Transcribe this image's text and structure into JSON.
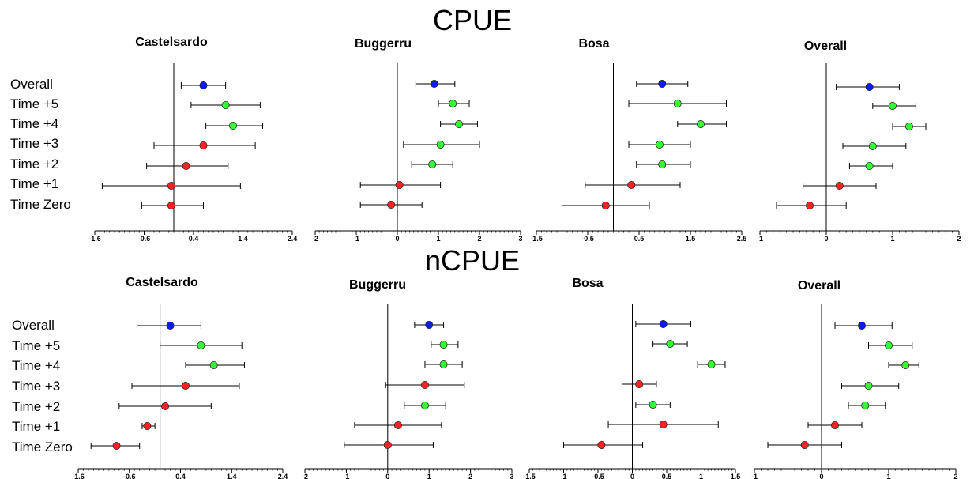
{
  "sections": [
    {
      "title": "CPUE"
    },
    {
      "title": "nCPUE"
    }
  ],
  "row_labels": [
    "Overall",
    "Time +5",
    "Time +4",
    "Time +3",
    "Time +2",
    "Time +1",
    "Time Zero"
  ],
  "colors": {
    "overall": "#0a1aff",
    "green": "#33ff33",
    "red": "#ff2222",
    "axis": "#000000",
    "marker_edge": "#222222"
  },
  "chart_data": [
    {
      "type": "forest",
      "section": "CPUE",
      "title": "Castelsardo",
      "xlim": [
        -1.6,
        2.4
      ],
      "xticks": [
        -1.6,
        -0.6,
        0.4,
        1.4,
        2.4
      ],
      "xtick_labels": [
        "-1.6",
        "-0.6",
        "0.4",
        "1.4",
        "2.4"
      ],
      "ref_line": 0,
      "points": [
        {
          "label": "Overall",
          "est": 0.6,
          "lo": 0.15,
          "hi": 1.05,
          "color": "blue"
        },
        {
          "label": "Time +5",
          "est": 1.05,
          "lo": 0.35,
          "hi": 1.75,
          "color": "green"
        },
        {
          "label": "Time +4",
          "est": 1.2,
          "lo": 0.65,
          "hi": 1.8,
          "color": "green"
        },
        {
          "label": "Time +3",
          "est": 0.6,
          "lo": -0.4,
          "hi": 1.65,
          "color": "red"
        },
        {
          "label": "Time +2",
          "est": 0.25,
          "lo": -0.55,
          "hi": 1.1,
          "color": "red"
        },
        {
          "label": "Time +1",
          "est": -0.05,
          "lo": -1.45,
          "hi": 1.35,
          "color": "red"
        },
        {
          "label": "Time Zero",
          "est": -0.05,
          "lo": -0.65,
          "hi": 0.6,
          "color": "red"
        }
      ]
    },
    {
      "type": "forest",
      "section": "CPUE",
      "title": "Buggerru",
      "xlim": [
        -2,
        3
      ],
      "xticks": [
        -2,
        -1,
        0,
        1,
        2,
        3
      ],
      "xtick_labels": [
        "-2",
        "-1",
        "0",
        "1",
        "2",
        "3"
      ],
      "ref_line": 0,
      "points": [
        {
          "label": "Overall",
          "est": 0.9,
          "lo": 0.45,
          "hi": 1.4,
          "color": "blue"
        },
        {
          "label": "Time +5",
          "est": 1.35,
          "lo": 1.0,
          "hi": 1.75,
          "color": "green"
        },
        {
          "label": "Time +4",
          "est": 1.5,
          "lo": 1.05,
          "hi": 1.95,
          "color": "green"
        },
        {
          "label": "Time +3",
          "est": 1.05,
          "lo": 0.15,
          "hi": 2.0,
          "color": "green"
        },
        {
          "label": "Time +2",
          "est": 0.85,
          "lo": 0.35,
          "hi": 1.35,
          "color": "green"
        },
        {
          "label": "Time +1",
          "est": 0.05,
          "lo": -0.9,
          "hi": 1.05,
          "color": "red"
        },
        {
          "label": "Time Zero",
          "est": -0.15,
          "lo": -0.9,
          "hi": 0.6,
          "color": "red"
        }
      ]
    },
    {
      "type": "forest",
      "section": "CPUE",
      "title": "Bosa",
      "xlim": [
        -1.5,
        2.5
      ],
      "xticks": [
        -1.5,
        -0.5,
        0.5,
        1.5,
        2.5
      ],
      "xtick_labels": [
        "-1.5",
        "-0.5",
        "0.5",
        "1.5",
        "2.5"
      ],
      "ref_line": 0,
      "points": [
        {
          "label": "Overall",
          "est": 0.95,
          "lo": 0.45,
          "hi": 1.45,
          "color": "blue"
        },
        {
          "label": "Time +5",
          "est": 1.25,
          "lo": 0.3,
          "hi": 2.2,
          "color": "green"
        },
        {
          "label": "Time +4",
          "est": 1.7,
          "lo": 1.25,
          "hi": 2.2,
          "color": "green"
        },
        {
          "label": "Time +3",
          "est": 0.9,
          "lo": 0.3,
          "hi": 1.5,
          "color": "green"
        },
        {
          "label": "Time +2",
          "est": 0.95,
          "lo": 0.45,
          "hi": 1.5,
          "color": "green"
        },
        {
          "label": "Time +1",
          "est": 0.35,
          "lo": -0.55,
          "hi": 1.3,
          "color": "red"
        },
        {
          "label": "Time Zero",
          "est": -0.15,
          "lo": -1.0,
          "hi": 0.7,
          "color": "red"
        }
      ]
    },
    {
      "type": "forest",
      "section": "CPUE",
      "title": "Overall",
      "xlim": [
        -1,
        2
      ],
      "xticks": [
        -1,
        0,
        1,
        2
      ],
      "xtick_labels": [
        "-1",
        "0",
        "1",
        "2"
      ],
      "ref_line": 0,
      "points": [
        {
          "label": "Overall",
          "est": 0.65,
          "lo": 0.15,
          "hi": 1.1,
          "color": "blue"
        },
        {
          "label": "Time +5",
          "est": 1.0,
          "lo": 0.7,
          "hi": 1.35,
          "color": "green"
        },
        {
          "label": "Time +4",
          "est": 1.25,
          "lo": 1.0,
          "hi": 1.5,
          "color": "green"
        },
        {
          "label": "Time +3",
          "est": 0.7,
          "lo": 0.25,
          "hi": 1.2,
          "color": "green"
        },
        {
          "label": "Time +2",
          "est": 0.65,
          "lo": 0.35,
          "hi": 1.0,
          "color": "green"
        },
        {
          "label": "Time +1",
          "est": 0.2,
          "lo": -0.35,
          "hi": 0.75,
          "color": "red"
        },
        {
          "label": "Time Zero",
          "est": -0.25,
          "lo": -0.75,
          "hi": 0.3,
          "color": "red"
        }
      ]
    },
    {
      "type": "forest",
      "section": "nCPUE",
      "title": "Castelsardo",
      "xlim": [
        -1.6,
        2.4
      ],
      "xticks": [
        -1.6,
        -0.6,
        0.4,
        1.4,
        2.4
      ],
      "xtick_labels": [
        "-1.6",
        "-0.6",
        "0.4",
        "1.4",
        "2.4"
      ],
      "ref_line": 0,
      "points": [
        {
          "label": "Overall",
          "est": 0.2,
          "lo": -0.45,
          "hi": 0.8,
          "color": "blue"
        },
        {
          "label": "Time +5",
          "est": 0.8,
          "lo": 0.0,
          "hi": 1.6,
          "color": "green"
        },
        {
          "label": "Time +4",
          "est": 1.05,
          "lo": 0.5,
          "hi": 1.65,
          "color": "green"
        },
        {
          "label": "Time +3",
          "est": 0.5,
          "lo": -0.55,
          "hi": 1.55,
          "color": "red"
        },
        {
          "label": "Time +2",
          "est": 0.1,
          "lo": -0.8,
          "hi": 1.0,
          "color": "red"
        },
        {
          "label": "Time +1",
          "est": -0.25,
          "lo": -0.35,
          "hi": -0.1,
          "color": "red"
        },
        {
          "label": "Time Zero",
          "est": -0.85,
          "lo": -1.35,
          "hi": -0.4,
          "color": "red"
        }
      ]
    },
    {
      "type": "forest",
      "section": "nCPUE",
      "title": "Buggerru",
      "xlim": [
        -2,
        3
      ],
      "xticks": [
        -2,
        -1,
        0,
        1,
        2,
        3
      ],
      "xtick_labels": [
        "-2",
        "-1",
        "0",
        "1",
        "2",
        "3"
      ],
      "ref_line": 0,
      "points": [
        {
          "label": "Overall",
          "est": 1.0,
          "lo": 0.65,
          "hi": 1.35,
          "color": "blue"
        },
        {
          "label": "Time +5",
          "est": 1.35,
          "lo": 1.05,
          "hi": 1.7,
          "color": "green"
        },
        {
          "label": "Time +4",
          "est": 1.35,
          "lo": 0.9,
          "hi": 1.8,
          "color": "green"
        },
        {
          "label": "Time +3",
          "est": 0.9,
          "lo": -0.05,
          "hi": 1.85,
          "color": "red"
        },
        {
          "label": "Time +2",
          "est": 0.9,
          "lo": 0.4,
          "hi": 1.4,
          "color": "green"
        },
        {
          "label": "Time +1",
          "est": 0.25,
          "lo": -0.8,
          "hi": 1.3,
          "color": "red"
        },
        {
          "label": "Time Zero",
          "est": 0.0,
          "lo": -1.05,
          "hi": 1.1,
          "color": "red"
        }
      ]
    },
    {
      "type": "forest",
      "section": "nCPUE",
      "title": "Bosa",
      "xlim": [
        -1.5,
        1.5
      ],
      "xticks": [
        -1.5,
        -1,
        -0.5,
        0,
        0.5,
        1,
        1.5
      ],
      "xtick_labels": [
        "-1.5",
        "-1",
        "-0.5",
        "0",
        "0.5",
        "1",
        "1.5"
      ],
      "ref_line": 0,
      "points": [
        {
          "label": "Overall",
          "est": 0.45,
          "lo": 0.05,
          "hi": 0.85,
          "color": "blue"
        },
        {
          "label": "Time +5",
          "est": 0.55,
          "lo": 0.3,
          "hi": 0.8,
          "color": "green"
        },
        {
          "label": "Time +4",
          "est": 1.15,
          "lo": 0.95,
          "hi": 1.35,
          "color": "green"
        },
        {
          "label": "Time +3",
          "est": 0.1,
          "lo": -0.15,
          "hi": 0.35,
          "color": "red"
        },
        {
          "label": "Time +2",
          "est": 0.3,
          "lo": 0.05,
          "hi": 0.55,
          "color": "green"
        },
        {
          "label": "Time +1",
          "est": 0.45,
          "lo": -0.35,
          "hi": 1.25,
          "color": "red"
        },
        {
          "label": "Time Zero",
          "est": -0.45,
          "lo": -1.0,
          "hi": 0.15,
          "color": "red"
        }
      ]
    },
    {
      "type": "forest",
      "section": "nCPUE",
      "title": "Overall",
      "xlim": [
        -1,
        2
      ],
      "xticks": [
        -1,
        0,
        1,
        2
      ],
      "xtick_labels": [
        "-1",
        "0",
        "1",
        "2"
      ],
      "ref_line": 0,
      "points": [
        {
          "label": "Overall",
          "est": 0.6,
          "lo": 0.2,
          "hi": 1.05,
          "color": "blue"
        },
        {
          "label": "Time +5",
          "est": 1.0,
          "lo": 0.7,
          "hi": 1.35,
          "color": "green"
        },
        {
          "label": "Time +4",
          "est": 1.25,
          "lo": 1.0,
          "hi": 1.45,
          "color": "green"
        },
        {
          "label": "Time +3",
          "est": 0.7,
          "lo": 0.3,
          "hi": 1.15,
          "color": "green"
        },
        {
          "label": "Time +2",
          "est": 0.65,
          "lo": 0.4,
          "hi": 0.95,
          "color": "green"
        },
        {
          "label": "Time +1",
          "est": 0.2,
          "lo": -0.2,
          "hi": 0.6,
          "color": "red"
        },
        {
          "label": "Time Zero",
          "est": -0.25,
          "lo": -0.8,
          "hi": 0.3,
          "color": "red"
        }
      ]
    }
  ]
}
